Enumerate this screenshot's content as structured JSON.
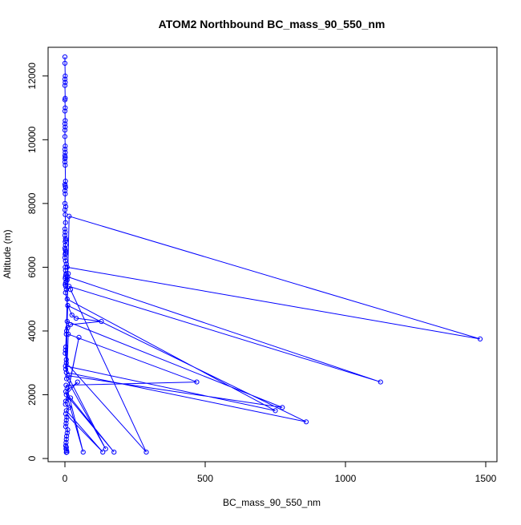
{
  "chart_data": {
    "type": "line",
    "title": "ATOM2 Northbound BC_mass_90_550_nm",
    "xlabel": "BC_mass_90_550_nm",
    "ylabel": "Altitude (m)",
    "xlim": [
      -60,
      1540
    ],
    "ylim": [
      -100,
      12900
    ],
    "x_ticks": [
      0,
      500,
      1000,
      1500
    ],
    "y_ticks": [
      0,
      2000,
      4000,
      6000,
      8000,
      10000,
      12000
    ],
    "grid": false,
    "legend": "none",
    "marker": "open-circle",
    "color": "#0000ff",
    "series": [
      {
        "x": [
          0,
          0,
          1,
          0,
          1,
          0,
          1,
          0,
          1,
          0,
          1,
          0,
          1,
          0,
          0,
          1,
          0,
          1,
          0,
          1,
          0,
          0,
          1,
          2,
          0,
          1,
          2,
          0,
          1,
          0,
          3,
          0,
          1,
          2,
          0,
          1,
          0,
          2,
          3,
          1,
          2,
          0,
          1,
          3,
          2,
          1,
          0,
          2,
          5,
          1,
          2,
          4,
          3,
          2,
          1,
          8,
          4,
          2,
          1,
          3,
          5,
          2,
          10,
          25,
          40,
          130,
          20,
          10,
          6,
          5,
          15,
          1480,
          8,
          12,
          3,
          2,
          1,
          5,
          10,
          1125,
          15,
          20,
          290,
          5,
          8,
          750,
          2,
          3,
          10,
          860,
          5,
          8,
          775,
          10,
          145,
          6,
          12,
          470,
          4,
          8,
          65,
          3,
          45,
          5,
          175,
          20,
          3,
          50,
          2,
          15,
          5,
          135,
          3,
          7,
          5,
          4,
          3,
          10,
          8,
          6,
          5,
          4,
          3,
          5,
          4,
          6,
          7,
          5
        ],
        "y": [
          12600,
          12400,
          12000,
          11900,
          11800,
          11700,
          11300,
          11250,
          11000,
          10900,
          10600,
          10500,
          10400,
          10300,
          10100,
          9800,
          9700,
          9600,
          9500,
          9450,
          9400,
          9300,
          9200,
          8700,
          8600,
          8550,
          8500,
          8400,
          8300,
          8000,
          7900,
          7800,
          7650,
          7400,
          7200,
          7100,
          7000,
          6900,
          6850,
          6800,
          6700,
          6600,
          6550,
          6500,
          6450,
          6400,
          6300,
          6200,
          6100,
          6000,
          5900,
          5800,
          5750,
          5700,
          5650,
          5600,
          5550,
          5500,
          5450,
          5400,
          5300,
          5200,
          4800,
          4500,
          4400,
          4300,
          4200,
          4100,
          4000,
          3900,
          7600,
          3750,
          6000,
          5800,
          3500,
          3400,
          3300,
          3100,
          5700,
          2400,
          5400,
          5300,
          200,
          3000,
          5000,
          1500,
          2900,
          2800,
          4800,
          1150,
          2700,
          4300,
          1600,
          2600,
          300,
          2500,
          3900,
          2400,
          2300,
          2200,
          200,
          2100,
          2400,
          2000,
          200,
          1900,
          1800,
          3800,
          1700,
          1600,
          1500,
          200,
          1400,
          1300,
          1200,
          1100,
          1000,
          900,
          800,
          700,
          600,
          500,
          400,
          350,
          300,
          250,
          200,
          190
        ]
      }
    ]
  }
}
